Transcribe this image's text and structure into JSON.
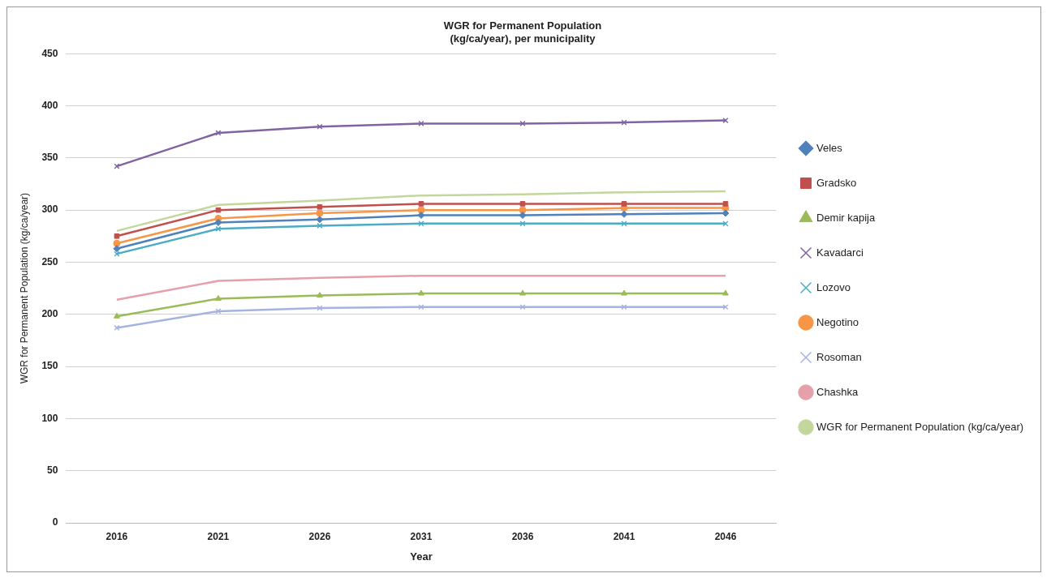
{
  "chart_data": {
    "type": "line",
    "title": "WGR for Permanent Population\n(kg/ca/year), per municipality",
    "xlabel": "Year",
    "ylabel": "WGR for Permanent Population (kg/ca/year)",
    "categories": [
      "2016",
      "2021",
      "2026",
      "2031",
      "2036",
      "2041",
      "2046"
    ],
    "ylim": [
      0,
      450
    ],
    "yticks": [
      0,
      50,
      100,
      150,
      200,
      250,
      300,
      350,
      400,
      450
    ],
    "grid": "y",
    "legend": "right",
    "series": [
      {
        "name": "Veles",
        "color": "#4f81bd",
        "marker": "diamond",
        "values": [
          263,
          288,
          291,
          295,
          295,
          296,
          297
        ]
      },
      {
        "name": "Gradsko",
        "color": "#c0504d",
        "marker": "square",
        "values": [
          275,
          300,
          303,
          306,
          306,
          306,
          306
        ]
      },
      {
        "name": "Demir kapija",
        "color": "#9bbb59",
        "marker": "triangle",
        "values": [
          198,
          215,
          218,
          220,
          220,
          220,
          220
        ]
      },
      {
        "name": "Kavadarci",
        "color": "#8064a2",
        "marker": "cross",
        "values": [
          342,
          374,
          380,
          383,
          383,
          384,
          386
        ]
      },
      {
        "name": "Lozovo",
        "color": "#4bacc6",
        "marker": "cross",
        "values": [
          258,
          282,
          285,
          287,
          287,
          287,
          287
        ]
      },
      {
        "name": "Negotino",
        "color": "#f79646",
        "marker": "circle",
        "values": [
          268,
          292,
          297,
          300,
          300,
          302,
          302
        ]
      },
      {
        "name": "Rosoman",
        "color": "#a5b3e0",
        "marker": "cross",
        "values": [
          187,
          203,
          206,
          207,
          207,
          207,
          207
        ]
      },
      {
        "name": "Chashka",
        "color": "#e6a0aa",
        "marker": "none",
        "values": [
          214,
          232,
          235,
          237,
          237,
          237,
          237
        ]
      },
      {
        "name": "WGR for Permanent Population (kg/ca/year)",
        "color": "#c3d69b",
        "marker": "none",
        "values": [
          280,
          305,
          309,
          314,
          315,
          317,
          318
        ]
      }
    ]
  }
}
